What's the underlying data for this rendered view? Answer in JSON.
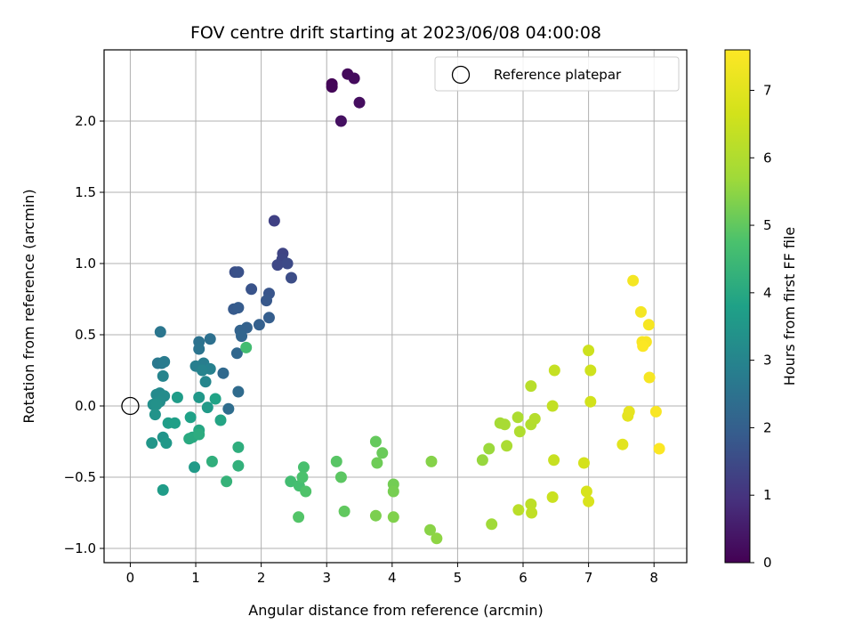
{
  "chart_data": {
    "type": "scatter",
    "title": "FOV centre drift starting at 2023/06/08 04:00:08",
    "xlabel": "Angular distance from reference (arcmin)",
    "ylabel": "Rotation from reference (arcmin)",
    "xlim": [
      -0.4,
      8.5
    ],
    "ylim": [
      -1.1,
      2.5
    ],
    "xticks": [
      0,
      1,
      2,
      3,
      4,
      5,
      6,
      7,
      8
    ],
    "xtick_labels": [
      "0",
      "1",
      "2",
      "3",
      "4",
      "5",
      "6",
      "7",
      "8"
    ],
    "yticks": [
      -1.0,
      -0.5,
      0.0,
      0.5,
      1.0,
      1.5,
      2.0
    ],
    "ytick_labels": [
      "−1.0",
      "−0.5",
      "0.0",
      "0.5",
      "1.0",
      "1.5",
      "2.0"
    ],
    "grid": true,
    "colormap": "viridis",
    "colorbar": {
      "label": "Hours from first FF file",
      "range": [
        0,
        7.6
      ],
      "ticks": [
        0,
        1,
        2,
        3,
        4,
        5,
        6,
        7
      ],
      "tick_labels": [
        "0",
        "1",
        "2",
        "3",
        "4",
        "5",
        "6",
        "7"
      ]
    },
    "legend": {
      "position": "top-right",
      "entries": [
        {
          "label": "Reference platepar",
          "marker": "open-circle"
        }
      ]
    },
    "reference_point": {
      "x": 0,
      "y": 0
    },
    "points": [
      {
        "x": 3.08,
        "y": 2.26,
        "c": 0.05
      },
      {
        "x": 3.08,
        "y": 2.24,
        "c": 0.1
      },
      {
        "x": 3.32,
        "y": 2.33,
        "c": 0.15
      },
      {
        "x": 3.42,
        "y": 2.3,
        "c": 0.2
      },
      {
        "x": 3.5,
        "y": 2.13,
        "c": 0.25
      },
      {
        "x": 3.22,
        "y": 2.0,
        "c": 0.3
      },
      {
        "x": 2.2,
        "y": 1.3,
        "c": 1.3
      },
      {
        "x": 2.33,
        "y": 1.07,
        "c": 1.35
      },
      {
        "x": 2.32,
        "y": 1.03,
        "c": 1.4
      },
      {
        "x": 2.25,
        "y": 0.99,
        "c": 1.45
      },
      {
        "x": 2.4,
        "y": 1.0,
        "c": 1.5
      },
      {
        "x": 2.46,
        "y": 0.9,
        "c": 1.55
      },
      {
        "x": 1.6,
        "y": 0.94,
        "c": 1.6
      },
      {
        "x": 1.65,
        "y": 0.94,
        "c": 1.65
      },
      {
        "x": 1.85,
        "y": 0.82,
        "c": 1.7
      },
      {
        "x": 2.12,
        "y": 0.79,
        "c": 1.75
      },
      {
        "x": 2.08,
        "y": 0.74,
        "c": 1.8
      },
      {
        "x": 1.58,
        "y": 0.68,
        "c": 1.85
      },
      {
        "x": 1.65,
        "y": 0.69,
        "c": 1.9
      },
      {
        "x": 2.12,
        "y": 0.62,
        "c": 1.95
      },
      {
        "x": 1.97,
        "y": 0.57,
        "c": 2.0
      },
      {
        "x": 1.78,
        "y": 0.55,
        "c": 2.05
      },
      {
        "x": 1.68,
        "y": 0.53,
        "c": 2.1
      },
      {
        "x": 1.7,
        "y": 0.49,
        "c": 2.15
      },
      {
        "x": 1.63,
        "y": 0.37,
        "c": 2.2
      },
      {
        "x": 1.42,
        "y": 0.23,
        "c": 2.25
      },
      {
        "x": 1.65,
        "y": 0.1,
        "c": 2.3
      },
      {
        "x": 1.5,
        "y": -0.02,
        "c": 2.35
      },
      {
        "x": 1.22,
        "y": 0.47,
        "c": 2.45
      },
      {
        "x": 1.05,
        "y": 0.45,
        "c": 2.5
      },
      {
        "x": 1.05,
        "y": 0.4,
        "c": 2.55
      },
      {
        "x": 0.46,
        "y": 0.52,
        "c": 2.6
      },
      {
        "x": 0.42,
        "y": 0.3,
        "c": 2.65
      },
      {
        "x": 0.48,
        "y": 0.3,
        "c": 2.7
      },
      {
        "x": 0.52,
        "y": 0.31,
        "c": 2.75
      },
      {
        "x": 1.12,
        "y": 0.3,
        "c": 2.8
      },
      {
        "x": 1.0,
        "y": 0.28,
        "c": 2.85
      },
      {
        "x": 1.22,
        "y": 0.26,
        "c": 2.9
      },
      {
        "x": 1.1,
        "y": 0.25,
        "c": 2.95
      },
      {
        "x": 0.5,
        "y": 0.21,
        "c": 3.0
      },
      {
        "x": 1.15,
        "y": 0.17,
        "c": 3.05
      },
      {
        "x": 0.45,
        "y": 0.09,
        "c": 3.1
      },
      {
        "x": 0.4,
        "y": 0.08,
        "c": 3.15
      },
      {
        "x": 0.52,
        "y": 0.07,
        "c": 3.2
      },
      {
        "x": 0.45,
        "y": 0.03,
        "c": 3.25
      },
      {
        "x": 0.35,
        "y": 0.01,
        "c": 3.3
      },
      {
        "x": 0.4,
        "y": 0.01,
        "c": 3.35
      },
      {
        "x": 0.38,
        "y": -0.06,
        "c": 3.4
      },
      {
        "x": 0.5,
        "y": -0.22,
        "c": 3.45
      },
      {
        "x": 0.33,
        "y": -0.26,
        "c": 3.5
      },
      {
        "x": 0.55,
        "y": -0.26,
        "c": 3.55
      },
      {
        "x": 0.98,
        "y": -0.43,
        "c": 3.6
      },
      {
        "x": 0.5,
        "y": -0.59,
        "c": 3.65
      },
      {
        "x": 1.05,
        "y": 0.06,
        "c": 3.55
      },
      {
        "x": 1.18,
        "y": -0.01,
        "c": 3.6
      },
      {
        "x": 0.72,
        "y": 0.06,
        "c": 3.65
      },
      {
        "x": 0.58,
        "y": -0.12,
        "c": 3.7
      },
      {
        "x": 0.68,
        "y": -0.12,
        "c": 3.75
      },
      {
        "x": 0.92,
        "y": -0.08,
        "c": 3.8
      },
      {
        "x": 1.3,
        "y": 0.05,
        "c": 3.85
      },
      {
        "x": 1.38,
        "y": -0.1,
        "c": 3.9
      },
      {
        "x": 1.05,
        "y": -0.17,
        "c": 3.95
      },
      {
        "x": 0.95,
        "y": -0.22,
        "c": 4.0
      },
      {
        "x": 0.9,
        "y": -0.23,
        "c": 4.05
      },
      {
        "x": 1.05,
        "y": -0.2,
        "c": 4.1
      },
      {
        "x": 1.65,
        "y": -0.29,
        "c": 4.15
      },
      {
        "x": 1.25,
        "y": -0.39,
        "c": 4.2
      },
      {
        "x": 1.65,
        "y": -0.42,
        "c": 4.25
      },
      {
        "x": 1.47,
        "y": -0.53,
        "c": 4.3
      },
      {
        "x": 1.77,
        "y": 0.41,
        "c": 4.6
      },
      {
        "x": 2.45,
        "y": -0.53,
        "c": 4.6
      },
      {
        "x": 2.58,
        "y": -0.56,
        "c": 4.65
      },
      {
        "x": 2.65,
        "y": -0.43,
        "c": 4.7
      },
      {
        "x": 2.63,
        "y": -0.5,
        "c": 4.75
      },
      {
        "x": 2.68,
        "y": -0.6,
        "c": 4.8
      },
      {
        "x": 2.57,
        "y": -0.78,
        "c": 4.85
      },
      {
        "x": 3.15,
        "y": -0.39,
        "c": 4.9
      },
      {
        "x": 3.22,
        "y": -0.5,
        "c": 4.95
      },
      {
        "x": 3.27,
        "y": -0.74,
        "c": 5.0
      },
      {
        "x": 3.75,
        "y": -0.25,
        "c": 5.05
      },
      {
        "x": 3.85,
        "y": -0.33,
        "c": 5.1
      },
      {
        "x": 3.77,
        "y": -0.4,
        "c": 5.15
      },
      {
        "x": 4.02,
        "y": -0.55,
        "c": 5.2
      },
      {
        "x": 4.02,
        "y": -0.6,
        "c": 5.25
      },
      {
        "x": 3.75,
        "y": -0.77,
        "c": 5.3
      },
      {
        "x": 4.02,
        "y": -0.78,
        "c": 5.35
      },
      {
        "x": 4.6,
        "y": -0.39,
        "c": 5.4
      },
      {
        "x": 4.58,
        "y": -0.87,
        "c": 5.45
      },
      {
        "x": 4.68,
        "y": -0.93,
        "c": 5.5
      },
      {
        "x": 5.38,
        "y": -0.38,
        "c": 5.6
      },
      {
        "x": 5.48,
        "y": -0.3,
        "c": 5.65
      },
      {
        "x": 5.52,
        "y": -0.83,
        "c": 5.7
      },
      {
        "x": 5.65,
        "y": -0.12,
        "c": 5.8
      },
      {
        "x": 5.72,
        "y": -0.13,
        "c": 5.85
      },
      {
        "x": 5.75,
        "y": -0.28,
        "c": 5.9
      },
      {
        "x": 5.92,
        "y": -0.08,
        "c": 5.95
      },
      {
        "x": 5.95,
        "y": -0.18,
        "c": 6.0
      },
      {
        "x": 6.12,
        "y": -0.13,
        "c": 6.05
      },
      {
        "x": 6.18,
        "y": -0.09,
        "c": 6.1
      },
      {
        "x": 6.12,
        "y": 0.14,
        "c": 6.15
      },
      {
        "x": 5.93,
        "y": -0.73,
        "c": 6.2
      },
      {
        "x": 6.12,
        "y": -0.69,
        "c": 6.25
      },
      {
        "x": 6.13,
        "y": -0.75,
        "c": 6.3
      },
      {
        "x": 6.45,
        "y": 0.0,
        "c": 6.35
      },
      {
        "x": 6.48,
        "y": 0.25,
        "c": 6.4
      },
      {
        "x": 6.47,
        "y": -0.38,
        "c": 6.45
      },
      {
        "x": 6.45,
        "y": -0.64,
        "c": 6.5
      },
      {
        "x": 7.0,
        "y": 0.39,
        "c": 6.55
      },
      {
        "x": 7.03,
        "y": 0.25,
        "c": 6.6
      },
      {
        "x": 7.03,
        "y": 0.03,
        "c": 6.65
      },
      {
        "x": 6.93,
        "y": -0.4,
        "c": 6.7
      },
      {
        "x": 6.97,
        "y": -0.6,
        "c": 6.75
      },
      {
        "x": 7.0,
        "y": -0.67,
        "c": 6.8
      },
      {
        "x": 7.52,
        "y": -0.27,
        "c": 7.0
      },
      {
        "x": 7.6,
        "y": -0.07,
        "c": 7.05
      },
      {
        "x": 7.62,
        "y": -0.04,
        "c": 7.1
      },
      {
        "x": 7.68,
        "y": 0.88,
        "c": 7.4
      },
      {
        "x": 7.8,
        "y": 0.66,
        "c": 7.4
      },
      {
        "x": 7.92,
        "y": 0.57,
        "c": 7.45
      },
      {
        "x": 7.82,
        "y": 0.45,
        "c": 7.5
      },
      {
        "x": 7.88,
        "y": 0.45,
        "c": 7.5
      },
      {
        "x": 7.83,
        "y": 0.42,
        "c": 7.55
      },
      {
        "x": 7.93,
        "y": 0.2,
        "c": 7.45
      },
      {
        "x": 8.03,
        "y": -0.04,
        "c": 7.5
      },
      {
        "x": 8.08,
        "y": -0.3,
        "c": 7.55
      }
    ]
  }
}
